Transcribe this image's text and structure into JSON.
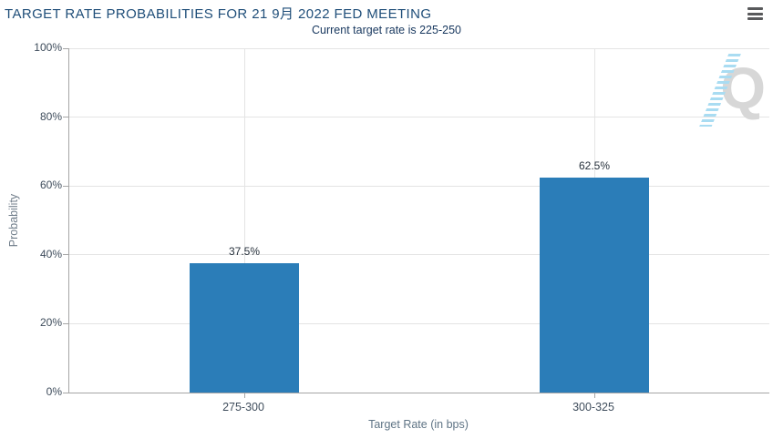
{
  "header": {
    "menu_icon": "hamburger-menu"
  },
  "chart_data": {
    "type": "bar",
    "title": "TARGET RATE PROBABILITIES FOR 21 9月 2022 FED MEETING",
    "subtitle": "Current target rate is 225-250",
    "categories": [
      "275-300",
      "300-325"
    ],
    "values": [
      37.5,
      62.5
    ],
    "data_labels": [
      "37.5%",
      "62.5%"
    ],
    "xlabel": "Target Rate (in bps)",
    "ylabel": "Probability",
    "ylim": [
      0,
      100
    ],
    "yticks": [
      {
        "value": 0,
        "label": "0%"
      },
      {
        "value": 20,
        "label": "20%"
      },
      {
        "value": 40,
        "label": "40%"
      },
      {
        "value": 60,
        "label": "60%"
      },
      {
        "value": 80,
        "label": "80%"
      },
      {
        "value": 100,
        "label": "100%"
      }
    ],
    "grid": true,
    "legend": "none",
    "bar_color": "#2b7db8",
    "watermark_letter": "Q"
  },
  "colors": {
    "title": "#1f4e79",
    "subtitle": "#17375e",
    "bar": "#2b7db8",
    "gridline": "#e4e4e4",
    "axis_line": "#a6a6a6",
    "tick_label": "#3f4d5c",
    "axis_title": "#5f7485",
    "watermark_q": "#d7d7d7",
    "watermark_dashes": "#a9dcf2",
    "menu_icon": "#58595b"
  }
}
